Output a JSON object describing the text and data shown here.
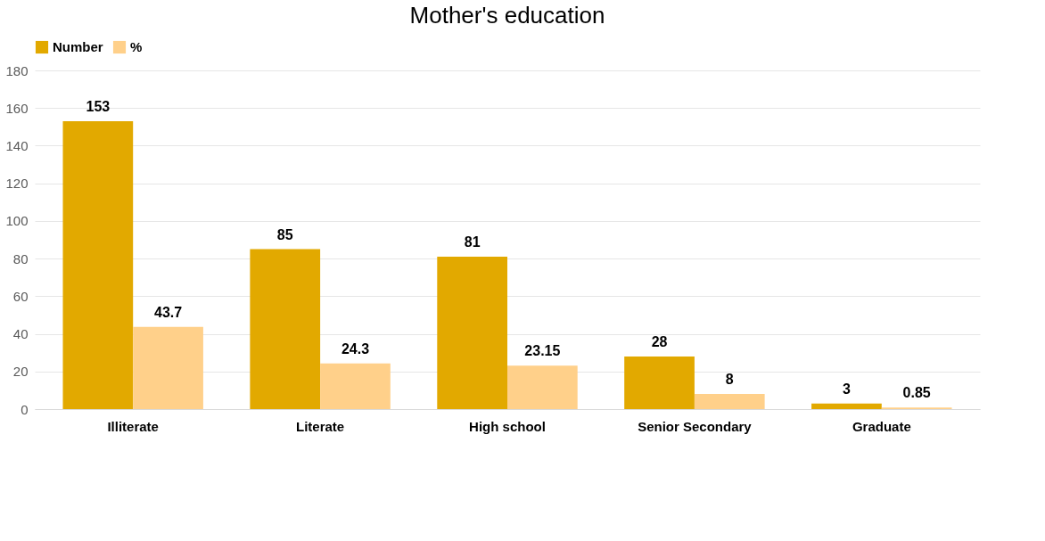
{
  "chart_data": {
    "type": "bar",
    "title": "Mother's education",
    "categories": [
      "Illiterate",
      "Literate",
      "High school",
      "Senior Secondary",
      "Graduate"
    ],
    "series": [
      {
        "name": "Number",
        "color": "#e2a900",
        "values": [
          153,
          85,
          81,
          28,
          3
        ]
      },
      {
        "name": "%",
        "color": "#ffd08a",
        "values": [
          43.7,
          24.3,
          23.15,
          8,
          0.85
        ]
      }
    ],
    "ylim": [
      0,
      180
    ],
    "yticks": [
      0,
      20,
      40,
      60,
      80,
      100,
      120,
      140,
      160,
      180
    ],
    "grid": "y",
    "legend": "top",
    "data_labels": true
  }
}
